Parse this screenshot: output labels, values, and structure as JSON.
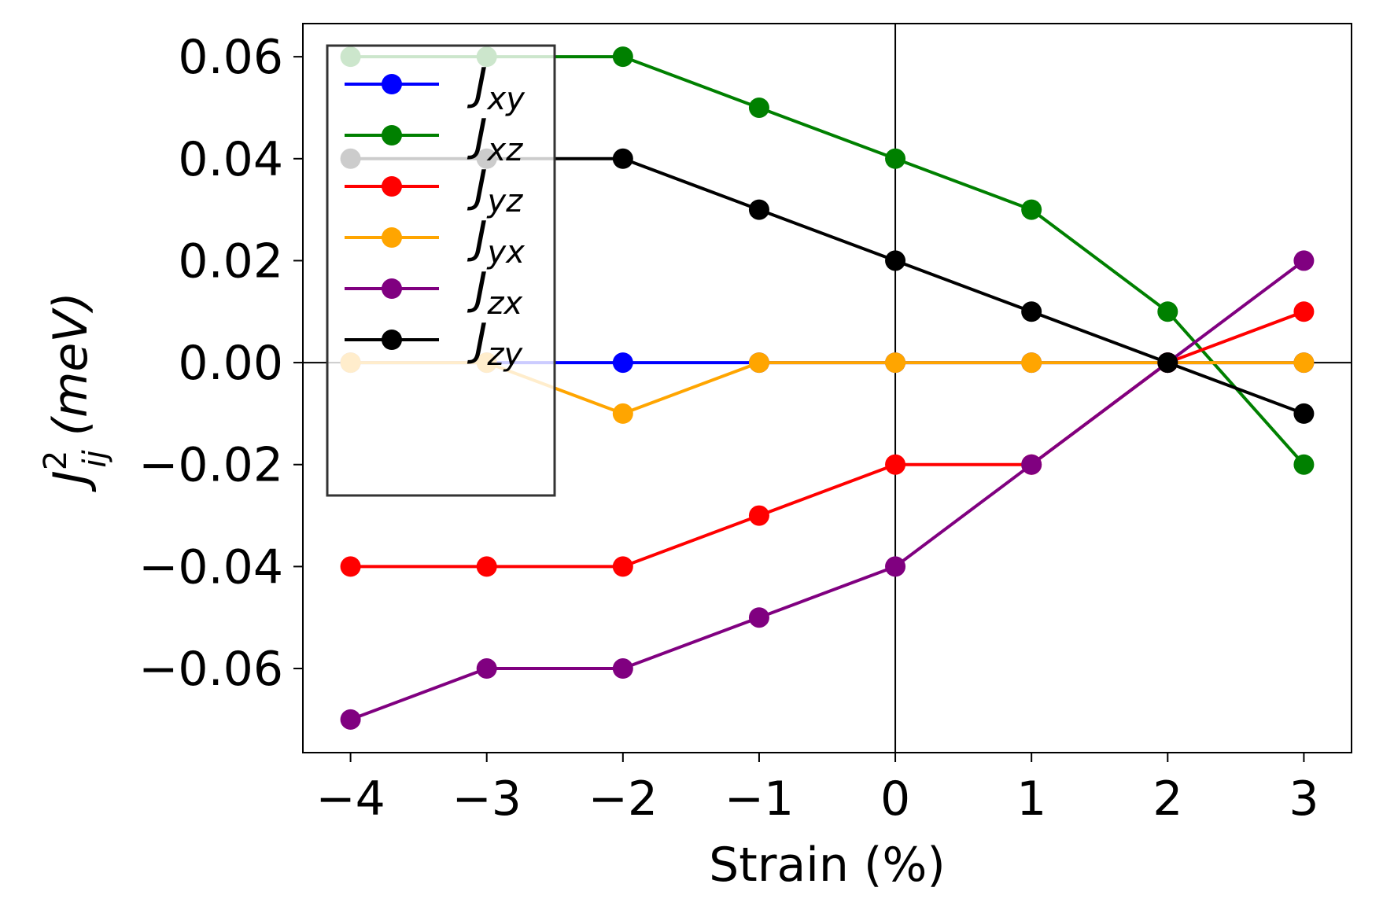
{
  "chart_data": {
    "type": "line",
    "xlabel": "Strain (%)",
    "ylabel": {
      "base": "J",
      "sup": "2",
      "sub": "ij",
      "unit": "(meV)"
    },
    "xlim": [
      -4.35,
      3.35
    ],
    "ylim": [
      -0.0765,
      0.0665
    ],
    "x_ticks": [
      -4,
      -3,
      -2,
      -1,
      0,
      1,
      2,
      3
    ],
    "x_tick_labels": [
      "−4",
      "−3",
      "−2",
      "−1",
      "0",
      "1",
      "2",
      "3"
    ],
    "y_ticks": [
      0.06,
      0.04,
      0.02,
      0.0,
      -0.02,
      -0.04,
      -0.06
    ],
    "y_tick_labels": [
      "0.06",
      "0.04",
      "0.02",
      "0.00",
      "−0.02",
      "−0.04",
      "−0.06"
    ],
    "reference_lines": {
      "x": 0,
      "y": 0
    },
    "grid": false,
    "legend_position": "upper-left",
    "x": [
      -4,
      -3,
      -2,
      -1,
      0,
      1,
      2,
      3
    ],
    "series": [
      {
        "name": "J_xy",
        "label": {
          "base": "J",
          "sub": "xy"
        },
        "color": "#0000ff",
        "values": [
          0,
          0,
          0,
          0,
          0,
          0,
          0,
          0
        ]
      },
      {
        "name": "J_xz",
        "label": {
          "base": "J",
          "sub": "xz"
        },
        "color": "#008000",
        "values": [
          0.06,
          0.06,
          0.06,
          0.05,
          0.04,
          0.03,
          0.01,
          -0.02
        ]
      },
      {
        "name": "J_yz",
        "label": {
          "base": "J",
          "sub": "yz"
        },
        "color": "#ff0000",
        "values": [
          -0.04,
          -0.04,
          -0.04,
          -0.03,
          -0.02,
          -0.02,
          0.0,
          0.01
        ]
      },
      {
        "name": "J_yx",
        "label": {
          "base": "J",
          "sub": "yx"
        },
        "color": "#ffa500",
        "values": [
          0,
          0,
          -0.01,
          0,
          0,
          0,
          0,
          0
        ]
      },
      {
        "name": "J_zx",
        "label": {
          "base": "J",
          "sub": "zx"
        },
        "color": "#800080",
        "values": [
          -0.07,
          -0.06,
          -0.06,
          -0.05,
          -0.04,
          -0.02,
          0.0,
          0.02
        ]
      },
      {
        "name": "J_zy",
        "label": {
          "base": "J",
          "sub": "zy"
        },
        "color": "#000000",
        "values": [
          0.04,
          0.04,
          0.04,
          0.03,
          0.02,
          0.01,
          0.0,
          -0.01
        ]
      }
    ]
  }
}
